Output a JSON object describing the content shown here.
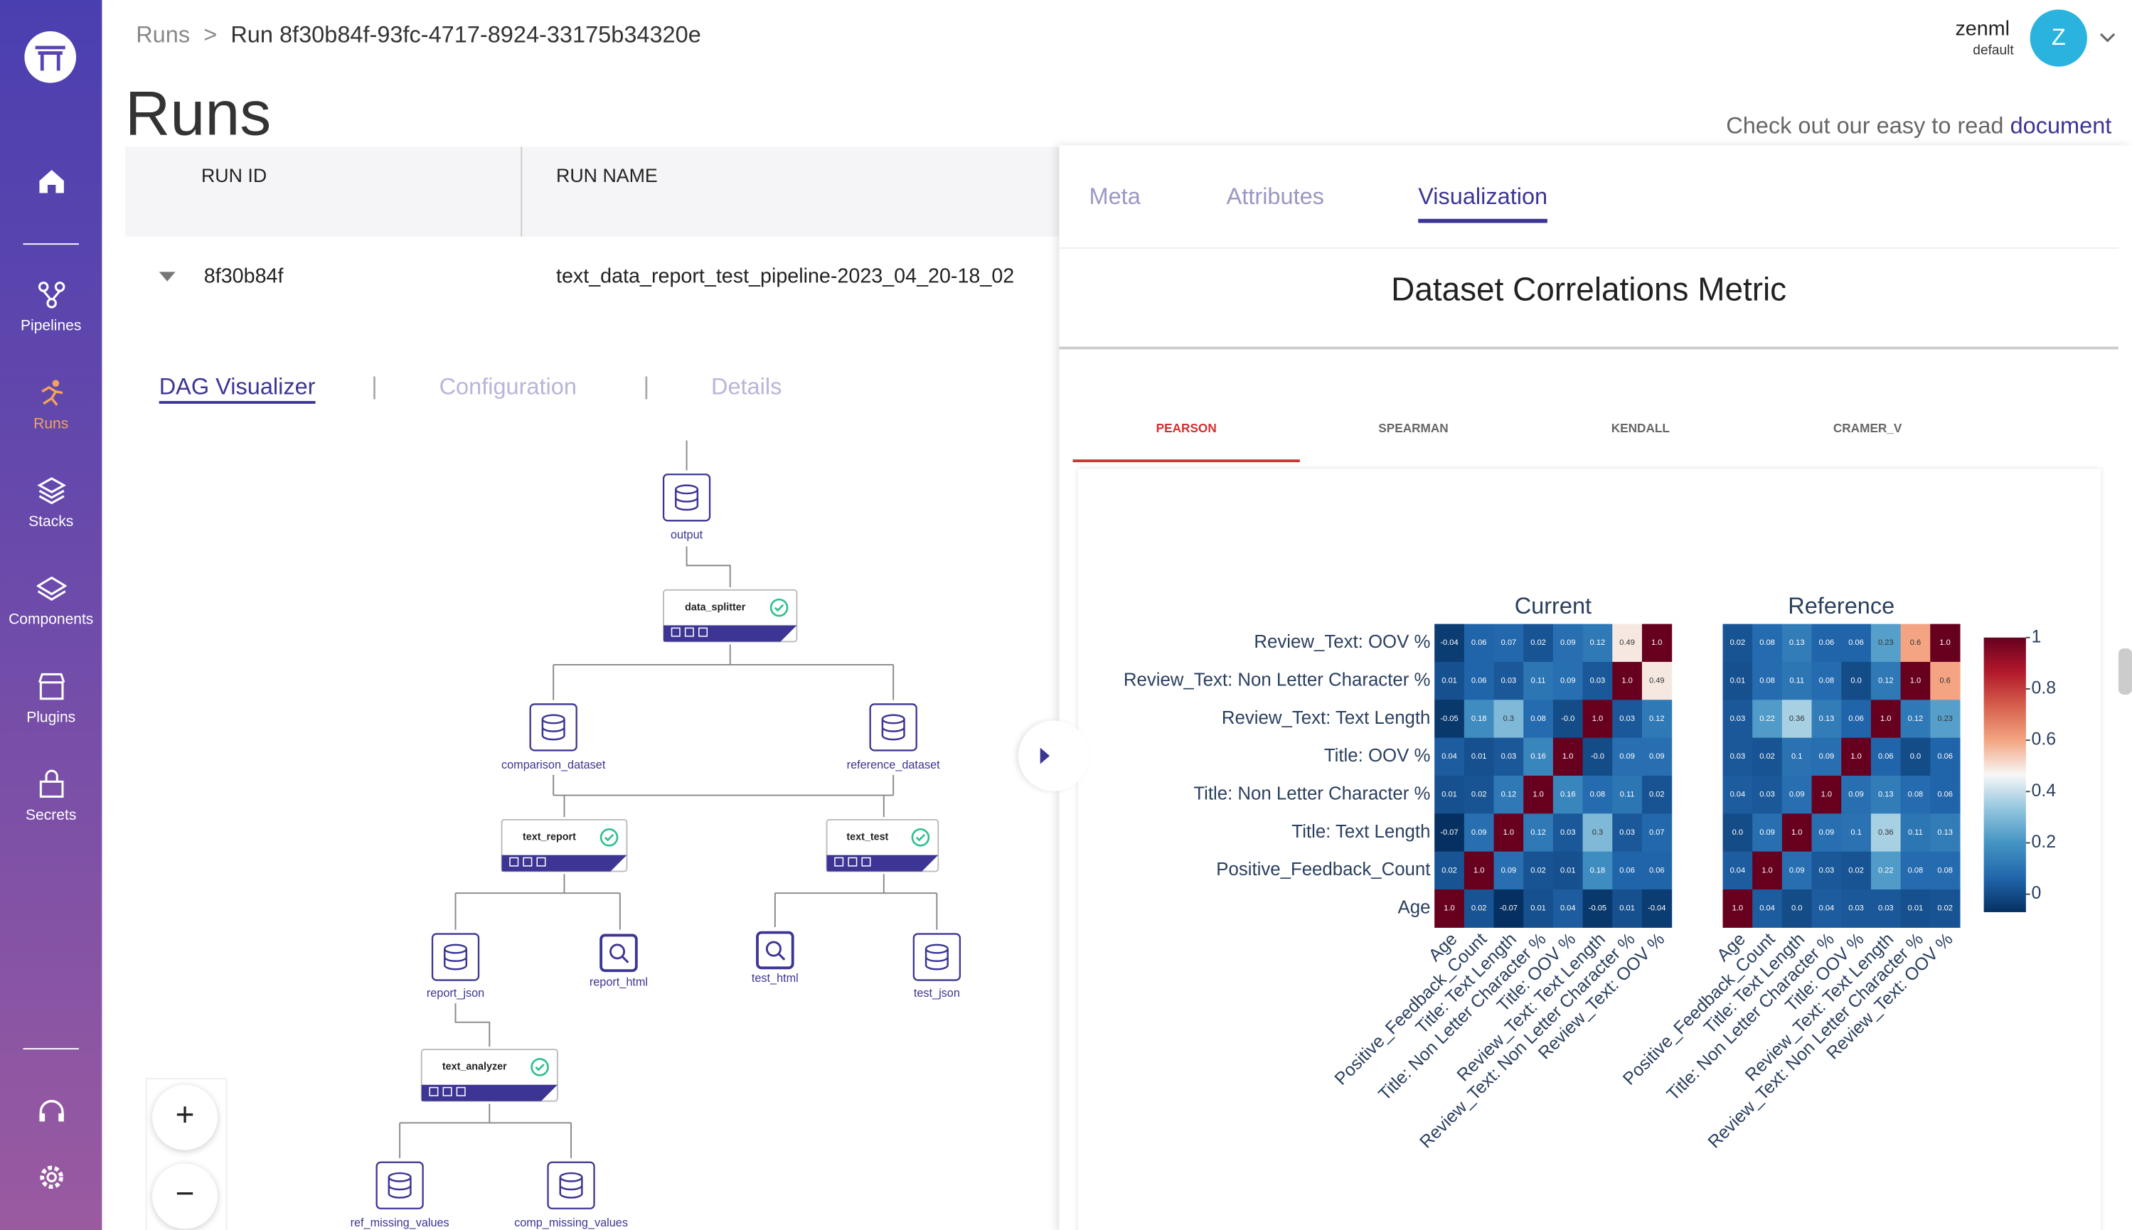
{
  "sidebar": {
    "items": [
      "Pipelines",
      "Runs",
      "Stacks",
      "Components",
      "Plugins",
      "Secrets"
    ]
  },
  "breadcrumb": [
    "Runs",
    "Run 8f30b84f-93fc-4717-8924-33175b34320e"
  ],
  "page_title": "Runs",
  "user": {
    "initial": "Z",
    "name": "zenml",
    "workspace": "default"
  },
  "doc_link": {
    "text": "Check out our easy to read",
    "link": "document"
  },
  "table": {
    "headers": [
      "RUN ID",
      "RUN NAME"
    ],
    "rows": [
      [
        "8f30b84f",
        "text_data_report_test_pipeline-2023_04_20-18_02"
      ]
    ]
  },
  "run_tabs": [
    "DAG Visualizer",
    "Configuration",
    "Details"
  ],
  "dag": {
    "nodes": [
      "output",
      "data_splitter",
      "comparison_dataset",
      "reference_dataset",
      "text_report",
      "text_test",
      "report_json",
      "report_html",
      "test_html",
      "test_json",
      "text_analyzer",
      "ref_missing_values",
      "comp_missing_values"
    ]
  },
  "panel": {
    "tabs": [
      "Meta",
      "Attributes",
      "Visualization"
    ],
    "title": "Dataset Correlations Metric",
    "method_tabs": [
      "PEARSON",
      "SPEARMAN",
      "KENDALL",
      "CRAMER_V"
    ]
  },
  "chart_data": [
    {
      "type": "heatmap",
      "title": "Current",
      "x": [
        "Age",
        "Positive_Feedback_Count",
        "Title: Text Length",
        "Title: Non Letter Character %",
        "Title: OOV %",
        "Review_Text: Text Length",
        "Review_Text: Non Letter Character %",
        "Review_Text: OOV %"
      ],
      "y": [
        "Review_Text: OOV %",
        "Review_Text: Non Letter Character %",
        "Review_Text: Text Length",
        "Title: OOV %",
        "Title: Non Letter Character %",
        "Title: Text Length",
        "Positive_Feedback_Count",
        "Age"
      ],
      "values": [
        [
          -0.04,
          0.06,
          0.07,
          0.02,
          0.09,
          0.12,
          0.49,
          1
        ],
        [
          0.01,
          0.06,
          0.03,
          0.11,
          0.09,
          0.03,
          1,
          0.49
        ],
        [
          -0.05,
          0.18,
          0.3,
          0.08,
          0,
          1,
          0.03,
          0.12
        ],
        [
          0.04,
          0.01,
          0.03,
          0.16,
          1,
          0,
          0.09,
          0.09
        ],
        [
          0.01,
          0.02,
          0.12,
          1,
          0.16,
          0.08,
          0.11,
          0.02
        ],
        [
          -0.07,
          0.09,
          1,
          0.12,
          0.03,
          0.3,
          0.03,
          0.07
        ],
        [
          0.02,
          1,
          0.09,
          0.02,
          0.01,
          0.18,
          0.06,
          0.06
        ],
        [
          1,
          0.02,
          -0.07,
          0.01,
          0.04,
          -0.05,
          0.01,
          -0.04
        ]
      ],
      "value_labels": [
        [
          "-0.04",
          "0.06",
          "0.07",
          "0.02",
          "0.09",
          "0.12",
          "0.49",
          "1.0"
        ],
        [
          "0.01",
          "0.06",
          "0.03",
          "0.11",
          "0.09",
          "0.03",
          "1.0",
          "0.49"
        ],
        [
          "-0.05",
          "0.18",
          "0.3",
          "0.08",
          "-0.0",
          "1.0",
          "0.03",
          "0.12"
        ],
        [
          "0.04",
          "0.01",
          "0.03",
          "0.16",
          "1.0",
          "-0.0",
          "0.09",
          "0.09"
        ],
        [
          "0.01",
          "0.02",
          "0.12",
          "1.0",
          "0.16",
          "0.08",
          "0.11",
          "0.02"
        ],
        [
          "-0.07",
          "0.09",
          "1.0",
          "0.12",
          "0.03",
          "0.3",
          "0.03",
          "0.07"
        ],
        [
          "0.02",
          "1.0",
          "0.09",
          "0.02",
          "0.01",
          "0.18",
          "0.06",
          "0.06"
        ],
        [
          "1.0",
          "0.02",
          "-0.07",
          "0.01",
          "0.04",
          "-0.05",
          "0.01",
          "-0.04"
        ]
      ],
      "zlim": [
        -0.07,
        1
      ],
      "colorscale": [
        "#053061",
        "#2166ac",
        "#4393c3",
        "#92c5de",
        "#f7f7f7",
        "#f4a582",
        "#d6604d",
        "#b2182b",
        "#67001f"
      ]
    },
    {
      "type": "heatmap",
      "title": "Reference",
      "x": [
        "Age",
        "Positive_Feedback_Count",
        "Title: Text Length",
        "Title: Non Letter Character %",
        "Title: OOV %",
        "Review_Text: Text Length",
        "Review_Text: Non Letter Character %",
        "Review_Text: OOV %"
      ],
      "values": [
        [
          0.02,
          0.08,
          0.13,
          0.06,
          0.06,
          0.23,
          0.6,
          1
        ],
        [
          0.01,
          0.08,
          0.11,
          0.08,
          0,
          0.12,
          1,
          0.6
        ],
        [
          0.03,
          0.22,
          0.36,
          0.13,
          0.06,
          1,
          0.12,
          0.23
        ],
        [
          0.03,
          0.02,
          0.1,
          0.09,
          1,
          0.06,
          0,
          0.06
        ],
        [
          0.04,
          0.03,
          0.09,
          1,
          0.09,
          0.13,
          0.08,
          0.06
        ],
        [
          0,
          0.09,
          1,
          0.09,
          0.1,
          0.36,
          0.11,
          0.13
        ],
        [
          0.04,
          1,
          0.09,
          0.03,
          0.02,
          0.22,
          0.08,
          0.08
        ],
        [
          1,
          0.04,
          0,
          0.04,
          0.03,
          0.03,
          0.01,
          0.02
        ]
      ],
      "value_labels": [
        [
          "0.02",
          "0.08",
          "0.13",
          "0.06",
          "0.06",
          "0.23",
          "0.6",
          "1.0"
        ],
        [
          "0.01",
          "0.08",
          "0.11",
          "0.08",
          "0.0",
          "0.12",
          "1.0",
          "0.6"
        ],
        [
          "0.03",
          "0.22",
          "0.36",
          "0.13",
          "0.06",
          "1.0",
          "0.12",
          "0.23"
        ],
        [
          "0.03",
          "0.02",
          "0.1",
          "0.09",
          "1.0",
          "0.06",
          "0.0",
          "0.06"
        ],
        [
          "0.04",
          "0.03",
          "0.09",
          "1.0",
          "0.09",
          "0.13",
          "0.08",
          "0.06"
        ],
        [
          "0.0",
          "0.09",
          "1.0",
          "0.09",
          "0.1",
          "0.36",
          "0.11",
          "0.13"
        ],
        [
          "0.04",
          "1.0",
          "0.09",
          "0.03",
          "0.02",
          "0.22",
          "0.08",
          "0.08"
        ],
        [
          "1.0",
          "0.04",
          "0.0",
          "0.04",
          "0.03",
          "0.03",
          "0.01",
          "0.02"
        ]
      ],
      "zlim": [
        -0.07,
        1
      ],
      "zticks": [
        0,
        0.2,
        0.4,
        0.6,
        0.8,
        1
      ],
      "colorscale": [
        "#053061",
        "#2166ac",
        "#4393c3",
        "#92c5de",
        "#f7f7f7",
        "#f4a582",
        "#d6604d",
        "#b2182b",
        "#67001f"
      ]
    }
  ]
}
